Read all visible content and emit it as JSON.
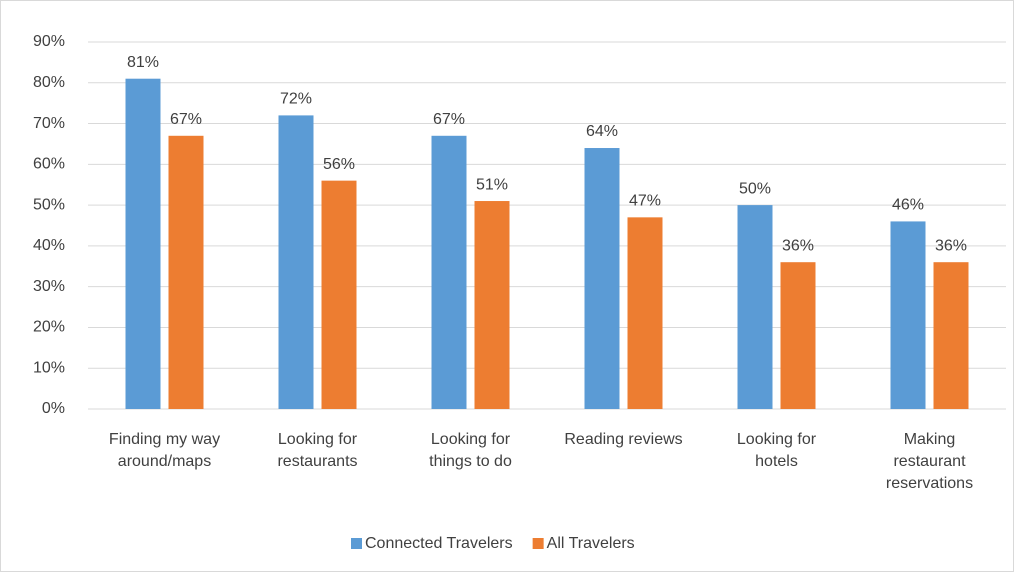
{
  "chart_data": {
    "type": "bar",
    "categories": [
      "Finding my way around/maps",
      "Looking for restaurants",
      "Looking for things to do",
      "Reading reviews",
      "Looking for hotels",
      "Making restaurant reservations"
    ],
    "series": [
      {
        "name": "Connected Travelers",
        "color": "#5b9bd5",
        "values": [
          81,
          72,
          67,
          64,
          50,
          46
        ],
        "value_labels": [
          "81%",
          "72%",
          "67%",
          "64%",
          "50%",
          "46%"
        ]
      },
      {
        "name": "All Travelers",
        "color": "#ed7d31",
        "values": [
          67,
          56,
          51,
          47,
          36,
          36
        ],
        "value_labels": [
          "67%",
          "56%",
          "51%",
          "47%",
          "36%",
          "36%"
        ]
      }
    ],
    "ylim": [
      0,
      90
    ],
    "yticks": [
      {
        "value": 0,
        "label": "0%"
      },
      {
        "value": 10,
        "label": "10%"
      },
      {
        "value": 20,
        "label": "20%"
      },
      {
        "value": 30,
        "label": "30%"
      },
      {
        "value": 40,
        "label": "40%"
      },
      {
        "value": 50,
        "label": "50%"
      },
      {
        "value": 60,
        "label": "60%"
      },
      {
        "value": 70,
        "label": "70%"
      },
      {
        "value": 80,
        "label": "80%"
      },
      {
        "value": 90,
        "label": "90%"
      }
    ],
    "grid": true,
    "legend": "bottom"
  }
}
